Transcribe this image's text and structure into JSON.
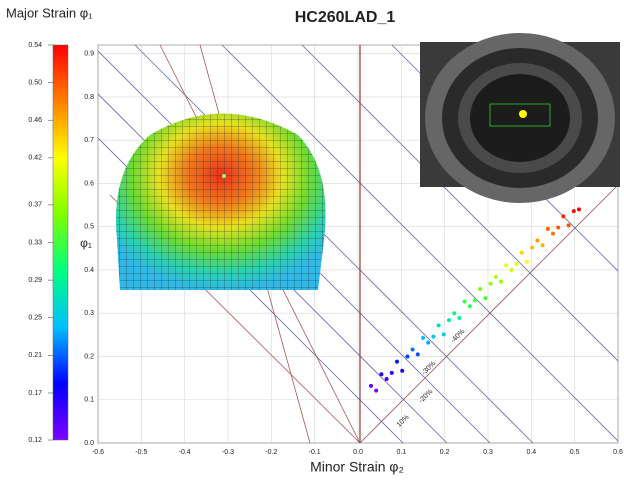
{
  "chart_data": {
    "type": "scatter",
    "title": "HC260LAD_1",
    "xlabel": "Minor Strain φ₂",
    "ylabel": "φ₁",
    "x": [
      0.03,
      0.042,
      0.054,
      0.066,
      0.078,
      0.09,
      0.102,
      0.114,
      0.126,
      0.138,
      0.15,
      0.162,
      0.174,
      0.186,
      0.198,
      0.21,
      0.222,
      0.234,
      0.246,
      0.258,
      0.27,
      0.282,
      0.294,
      0.306,
      0.318,
      0.33,
      0.342,
      0.354,
      0.366,
      0.378,
      0.39,
      0.402,
      0.414,
      0.426,
      0.438,
      0.45,
      0.462,
      0.474,
      0.486,
      0.498,
      0.51
    ],
    "values": [
      0.132,
      0.121,
      0.159,
      0.148,
      0.162,
      0.188,
      0.167,
      0.2,
      0.216,
      0.205,
      0.243,
      0.232,
      0.246,
      0.272,
      0.251,
      0.284,
      0.3,
      0.289,
      0.327,
      0.316,
      0.33,
      0.356,
      0.335,
      0.368,
      0.384,
      0.373,
      0.411,
      0.4,
      0.414,
      0.44,
      0.419,
      0.452,
      0.468,
      0.457,
      0.495,
      0.484,
      0.498,
      0.524,
      0.503,
      0.536,
      0.54
    ],
    "xlim": [
      -0.6,
      0.6
    ],
    "xticks": [
      -0.6,
      -0.5,
      -0.4,
      -0.3,
      -0.2,
      -0.1,
      {
        "value": 0,
        "label": "0.0"
      },
      0.1,
      0.2,
      0.3,
      0.4,
      0.5,
      0.6
    ],
    "ylim": [
      0,
      0.92
    ],
    "yticks": [
      {
        "value": 0,
        "label": "0.0"
      },
      0.1,
      0.2,
      0.3,
      0.4,
      0.5,
      0.6,
      0.7,
      0.8,
      0.9
    ],
    "grid": true,
    "colormap": [
      "#8000ff",
      "#0000ff",
      "#00c0ff",
      "#00ff80",
      "#80ff00",
      "#ffff00",
      "#ff8000",
      "#ff0000"
    ],
    "colorbar": {
      "title": "Major Strain φ₁",
      "lim": [
        0.12,
        0.54
      ],
      "ticks": [
        0.12,
        0.17,
        0.21,
        0.25,
        0.29,
        0.33,
        0.37,
        0.42,
        0.46,
        {
          "value": 0.5,
          "label": "0.50"
        },
        0.54
      ]
    },
    "annotations": [
      "10%",
      "-20%",
      "-30%",
      "-40%"
    ]
  }
}
